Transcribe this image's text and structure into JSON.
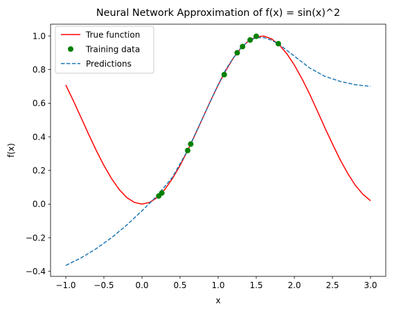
{
  "chart_data": {
    "type": "line",
    "title": "Neural Network Approximation of f(x) = sin(x)^2",
    "xlabel": "x",
    "ylabel": "f(x)",
    "xlim": [
      -1.2,
      3.2
    ],
    "ylim": [
      -0.43,
      1.07
    ],
    "xticks": [
      -1.0,
      -0.5,
      0.0,
      0.5,
      1.0,
      1.5,
      2.0,
      2.5,
      3.0
    ],
    "xtick_labels": [
      "−1.0",
      "−0.5",
      "0.0",
      "0.5",
      "1.0",
      "1.5",
      "2.0",
      "2.5",
      "3.0"
    ],
    "yticks": [
      -0.4,
      -0.2,
      0.0,
      0.2,
      0.4,
      0.6,
      0.8,
      1.0
    ],
    "ytick_labels": [
      "−0.4",
      "−0.2",
      "0.0",
      "0.2",
      "0.4",
      "0.6",
      "0.8",
      "1.0"
    ],
    "grid": false,
    "legend_position": "top-left",
    "series": [
      {
        "name": "True function",
        "kind": "line",
        "style": "solid",
        "color": "#ff0000",
        "x": [
          -1.0,
          -0.9,
          -0.8,
          -0.7,
          -0.6,
          -0.5,
          -0.4,
          -0.3,
          -0.2,
          -0.1,
          0.0,
          0.1,
          0.2,
          0.3,
          0.4,
          0.5,
          0.6,
          0.7,
          0.8,
          0.9,
          1.0,
          1.1,
          1.2,
          1.3,
          1.4,
          1.5,
          1.6,
          1.7,
          1.8,
          1.9,
          2.0,
          2.1,
          2.2,
          2.3,
          2.4,
          2.5,
          2.6,
          2.7,
          2.8,
          2.9,
          3.0
        ],
        "y": [
          0.708,
          0.614,
          0.515,
          0.415,
          0.319,
          0.23,
          0.152,
          0.087,
          0.039,
          0.01,
          0.0,
          0.01,
          0.039,
          0.087,
          0.152,
          0.23,
          0.319,
          0.415,
          0.515,
          0.614,
          0.708,
          0.794,
          0.869,
          0.929,
          0.971,
          0.995,
          0.999,
          0.983,
          0.948,
          0.895,
          0.827,
          0.746,
          0.655,
          0.556,
          0.455,
          0.358,
          0.265,
          0.183,
          0.112,
          0.058,
          0.02
        ]
      },
      {
        "name": "Training data",
        "kind": "scatter",
        "color": "#008000",
        "x": [
          0.22,
          0.26,
          0.6,
          0.64,
          1.08,
          1.25,
          1.32,
          1.42,
          1.5,
          1.79
        ],
        "y": [
          0.048,
          0.066,
          0.319,
          0.357,
          0.77,
          0.9,
          0.937,
          0.976,
          0.998,
          0.954
        ]
      },
      {
        "name": "Predictions",
        "kind": "line",
        "style": "dashed",
        "color": "#1f77b4",
        "x": [
          -1.0,
          -0.8,
          -0.6,
          -0.4,
          -0.2,
          0.0,
          0.2,
          0.4,
          0.6,
          0.8,
          1.0,
          1.1,
          1.2,
          1.3,
          1.4,
          1.5,
          1.6,
          1.7,
          1.8,
          2.0,
          2.2,
          2.4,
          2.6,
          2.8,
          3.0
        ],
        "y": [
          -0.365,
          -0.32,
          -0.265,
          -0.2,
          -0.125,
          -0.04,
          0.05,
          0.16,
          0.32,
          0.515,
          0.71,
          0.8,
          0.87,
          0.93,
          0.97,
          0.99,
          0.99,
          0.975,
          0.95,
          0.88,
          0.81,
          0.76,
          0.73,
          0.71,
          0.7
        ]
      }
    ]
  }
}
